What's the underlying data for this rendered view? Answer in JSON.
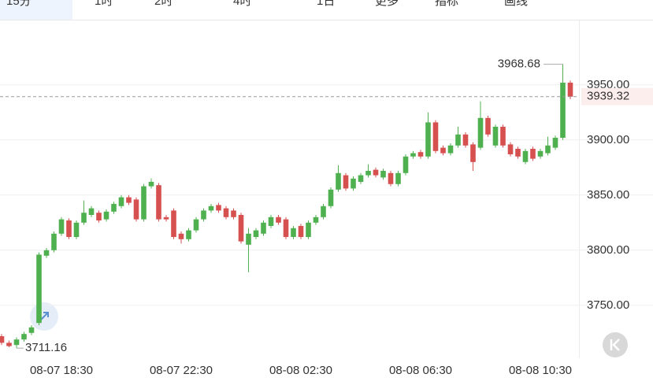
{
  "tabs": [
    "15分",
    "1时",
    "2时",
    "4时",
    "1日",
    "更多",
    "指标",
    "画线"
  ],
  "chart_data": {
    "type": "candlestick",
    "categories": [
      null,
      null,
      null,
      null,
      null,
      null,
      null,
      null,
      "08-07 18:30",
      null,
      null,
      null,
      null,
      null,
      null,
      null,
      null,
      null,
      null,
      null,
      null,
      null,
      null,
      null,
      "08-07 22:30",
      null,
      null,
      null,
      null,
      null,
      null,
      null,
      null,
      null,
      null,
      null,
      null,
      null,
      null,
      null,
      "08-08 02:30",
      null,
      null,
      null,
      null,
      null,
      null,
      null,
      null,
      null,
      null,
      null,
      null,
      null,
      null,
      null,
      "08-08 06:30",
      null,
      null,
      null,
      null,
      null,
      null,
      null,
      null,
      null,
      null,
      null,
      null,
      null,
      null,
      null,
      "08-08 10:30",
      null,
      null,
      null,
      null
    ],
    "open": [
      3722,
      3716,
      3714,
      3719,
      3725,
      3734,
      3795,
      3800,
      3815,
      3827,
      3812,
      3825,
      3832,
      3834,
      3828,
      3835,
      3840,
      3848,
      3846,
      3828,
      3858,
      3859,
      3830,
      3836,
      3815,
      3810,
      3818,
      3828,
      3836,
      3841,
      3838,
      3836,
      3832,
      3805,
      3812,
      3815,
      3822,
      3830,
      3828,
      3812,
      3822,
      3812,
      3825,
      3830,
      3840,
      3855,
      3868,
      3856,
      3862,
      3868,
      3873,
      3866,
      3870,
      3860,
      3870,
      3885,
      3889,
      3885,
      3916,
      3893,
      3888,
      3895,
      3905,
      3896,
      3893,
      3920,
      3895,
      3912,
      3896,
      3892,
      3880,
      3892,
      3885,
      3888,
      3893,
      3902,
      3952
    ],
    "high": [
      3724,
      3718,
      3721,
      3726,
      3732,
      3798,
      3802,
      3817,
      3830,
      3829,
      3827,
      3845,
      3840,
      3836,
      3837,
      3844,
      3850,
      3850,
      3848,
      3860,
      3865,
      3861,
      3832,
      3838,
      3817,
      3820,
      3830,
      3838,
      3842,
      3843,
      3840,
      3838,
      3834,
      3820,
      3820,
      3827,
      3832,
      3832,
      3830,
      3822,
      3824,
      3827,
      3832,
      3842,
      3857,
      3877,
      3870,
      3867,
      3870,
      3878,
      3875,
      3874,
      3872,
      3872,
      3887,
      3890,
      3891,
      3925,
      3918,
      3895,
      3897,
      3912,
      3907,
      3898,
      3935,
      3922,
      3914,
      3914,
      3898,
      3894,
      3892,
      3894,
      3892,
      3903,
      3904,
      3968.68,
      3954
    ],
    "low": [
      3714,
      3712,
      3711.16,
      3717,
      3723,
      3732,
      3793,
      3798,
      3813,
      3810,
      3810,
      3823,
      3830,
      3825,
      3826,
      3833,
      3838,
      3841,
      3826,
      3826,
      3856,
      3826,
      3826,
      3810,
      3806,
      3808,
      3816,
      3826,
      3834,
      3834,
      3828,
      3828,
      3806,
      3780,
      3810,
      3813,
      3820,
      3823,
      3810,
      3810,
      3810,
      3810,
      3823,
      3828,
      3838,
      3853,
      3854,
      3854,
      3860,
      3866,
      3866,
      3864,
      3858,
      3858,
      3868,
      3883,
      3883,
      3883,
      3888,
      3886,
      3886,
      3893,
      3893,
      3872,
      3891,
      3903,
      3893,
      3893,
      3885,
      3883,
      3878,
      3881,
      3883,
      3886,
      3891,
      3900,
      3937
    ],
    "close": [
      3716,
      3713,
      3719,
      3724,
      3730,
      3796,
      3800,
      3815,
      3828,
      3812,
      3825,
      3834,
      3838,
      3827,
      3835,
      3842,
      3848,
      3843,
      3828,
      3858,
      3862,
      3828,
      3828,
      3812,
      3810,
      3818,
      3828,
      3836,
      3840,
      3836,
      3830,
      3830,
      3808,
      3815,
      3818,
      3825,
      3830,
      3825,
      3812,
      3820,
      3812,
      3825,
      3830,
      3840,
      3855,
      3870,
      3856,
      3865,
      3868,
      3872,
      3868,
      3872,
      3860,
      3870,
      3885,
      3888,
      3885,
      3916,
      3890,
      3888,
      3895,
      3905,
      3895,
      3880,
      3920,
      3905,
      3912,
      3895,
      3887,
      3885,
      3890,
      3883,
      3890,
      3895,
      3902,
      3952,
      3939.32
    ],
    "up_color": "#4fb04f",
    "down_color": "#d65050",
    "ylim": [
      3702,
      4007
    ],
    "yticks": [
      {
        "value": 3750,
        "label": "3750.00"
      },
      {
        "value": 3800,
        "label": "3800.00"
      },
      {
        "value": 3850,
        "label": "3850.00"
      },
      {
        "value": 3900,
        "label": "3900.00"
      },
      {
        "value": 3950,
        "label": "3950.00"
      }
    ],
    "grid": true,
    "high_marker": 3968.68,
    "low_marker": 3711.16,
    "last_price": 3939.32
  }
}
